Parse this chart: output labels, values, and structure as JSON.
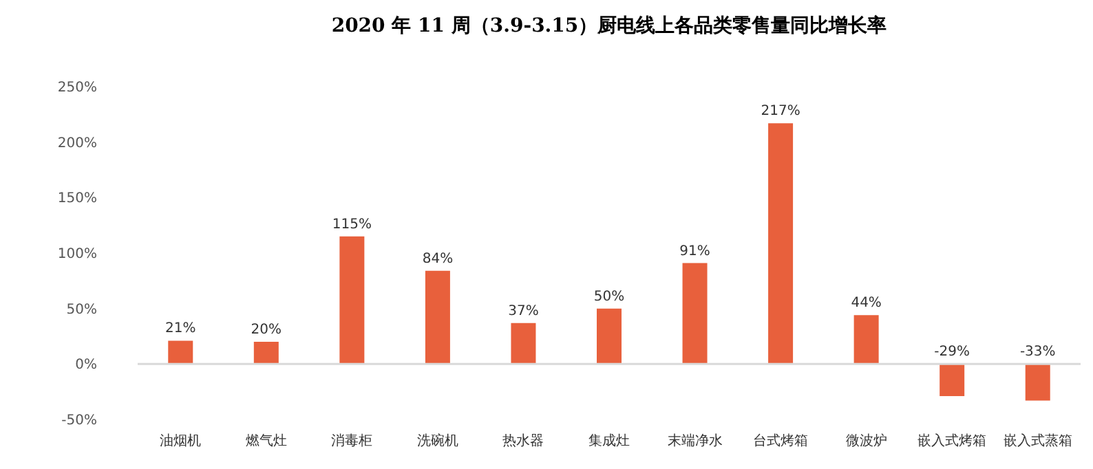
{
  "chart_data": {
    "type": "bar",
    "title": "2020 年 11 周（3.9-3.15）厨电线上各品类零售量同比增长率",
    "categories": [
      "油烟机",
      "燃气灶",
      "消毒柜",
      "洗碗机",
      "热水器",
      "集成灶",
      "末端净水",
      "台式烤箱",
      "微波炉",
      "嵌入式烤箱",
      "嵌入式蒸箱"
    ],
    "values": [
      21,
      20,
      115,
      84,
      37,
      50,
      91,
      217,
      44,
      -29,
      -33
    ],
    "value_labels": [
      "21%",
      "20%",
      "115%",
      "84%",
      "37%",
      "50%",
      "91%",
      "217%",
      "44%",
      "-29%",
      "-33%"
    ],
    "color": "#e8603c",
    "ylim": [
      -50,
      250
    ],
    "yticks": [
      {
        "value": -50,
        "label": "-50%"
      },
      {
        "value": 0,
        "label": "0%"
      },
      {
        "value": 50,
        "label": "50%"
      },
      {
        "value": 100,
        "label": "100%"
      },
      {
        "value": 150,
        "label": "150%"
      },
      {
        "value": 200,
        "label": "200%"
      },
      {
        "value": 250,
        "label": "250%"
      }
    ],
    "ref_lines": [
      {
        "axis": "y",
        "value": 0,
        "color": "#d9d9d9"
      }
    ]
  }
}
